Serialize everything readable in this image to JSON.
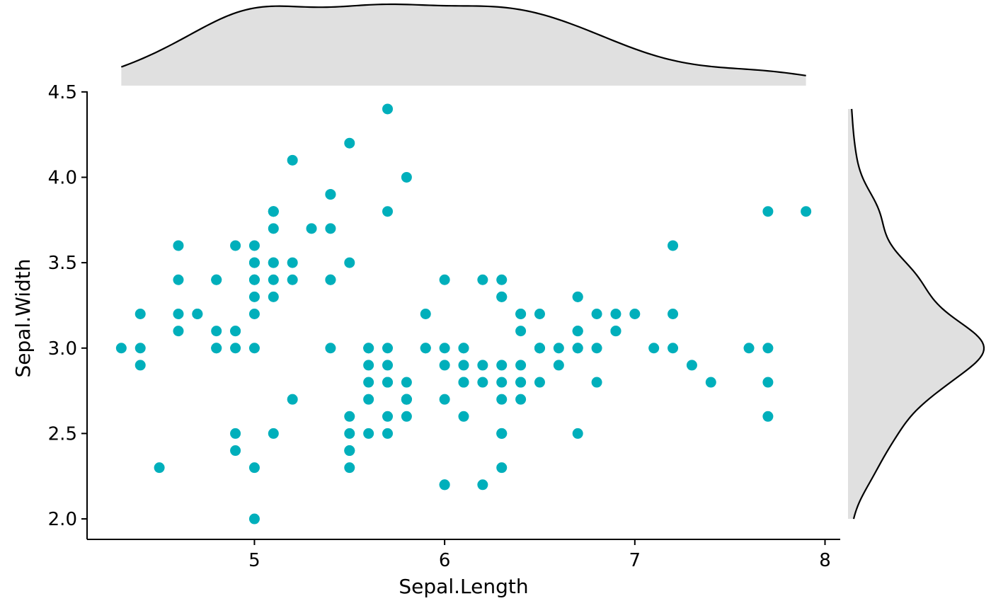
{
  "chart_data": {
    "type": "scatter",
    "title": "",
    "xlabel": "Sepal.Length",
    "ylabel": "Sepal.Width",
    "xlim": [
      4.12,
      8.08
    ],
    "ylim": [
      1.88,
      4.52
    ],
    "xticks": [
      5,
      6,
      7,
      8
    ],
    "yticks": [
      2.0,
      2.5,
      3.0,
      3.5,
      4.0,
      4.5
    ],
    "xtick_labels": [
      "5",
      "6",
      "7",
      "8"
    ],
    "ytick_labels": [
      "2.0",
      "2.5",
      "3.0",
      "3.5",
      "4.0",
      "4.5"
    ],
    "grid": false,
    "legend": "none",
    "point_color": "#00AFBB",
    "density_fill": "#E0E0E0",
    "marginal": "density",
    "points": [
      [
        5.1,
        3.5
      ],
      [
        4.9,
        3.0
      ],
      [
        4.7,
        3.2
      ],
      [
        4.6,
        3.1
      ],
      [
        5.0,
        3.6
      ],
      [
        5.4,
        3.9
      ],
      [
        4.6,
        3.4
      ],
      [
        5.0,
        3.4
      ],
      [
        4.4,
        2.9
      ],
      [
        4.9,
        3.1
      ],
      [
        5.4,
        3.7
      ],
      [
        4.8,
        3.4
      ],
      [
        4.8,
        3.0
      ],
      [
        4.3,
        3.0
      ],
      [
        5.8,
        4.0
      ],
      [
        5.7,
        4.4
      ],
      [
        5.4,
        3.9
      ],
      [
        5.1,
        3.5
      ],
      [
        5.7,
        3.8
      ],
      [
        5.1,
        3.8
      ],
      [
        5.4,
        3.4
      ],
      [
        5.1,
        3.7
      ],
      [
        4.6,
        3.6
      ],
      [
        5.1,
        3.3
      ],
      [
        4.8,
        3.4
      ],
      [
        5.0,
        3.0
      ],
      [
        5.0,
        3.4
      ],
      [
        5.2,
        3.5
      ],
      [
        5.2,
        3.4
      ],
      [
        4.7,
        3.2
      ],
      [
        4.8,
        3.1
      ],
      [
        5.4,
        3.4
      ],
      [
        5.2,
        4.1
      ],
      [
        5.5,
        4.2
      ],
      [
        4.9,
        3.1
      ],
      [
        5.0,
        3.2
      ],
      [
        5.5,
        3.5
      ],
      [
        4.9,
        3.6
      ],
      [
        4.4,
        3.0
      ],
      [
        5.1,
        3.4
      ],
      [
        5.0,
        3.5
      ],
      [
        4.5,
        2.3
      ],
      [
        4.4,
        3.2
      ],
      [
        5.0,
        3.5
      ],
      [
        5.1,
        3.8
      ],
      [
        4.8,
        3.0
      ],
      [
        5.1,
        3.8
      ],
      [
        4.6,
        3.2
      ],
      [
        5.3,
        3.7
      ],
      [
        5.0,
        3.3
      ],
      [
        7.0,
        3.2
      ],
      [
        6.4,
        3.2
      ],
      [
        6.9,
        3.1
      ],
      [
        5.5,
        2.3
      ],
      [
        6.5,
        2.8
      ],
      [
        5.7,
        2.8
      ],
      [
        6.3,
        3.3
      ],
      [
        4.9,
        2.4
      ],
      [
        6.6,
        2.9
      ],
      [
        5.2,
        2.7
      ],
      [
        5.0,
        2.0
      ],
      [
        5.9,
        3.0
      ],
      [
        6.0,
        2.2
      ],
      [
        6.1,
        2.9
      ],
      [
        5.6,
        2.9
      ],
      [
        6.7,
        3.1
      ],
      [
        5.6,
        3.0
      ],
      [
        5.8,
        2.7
      ],
      [
        6.2,
        2.2
      ],
      [
        5.6,
        2.5
      ],
      [
        5.9,
        3.2
      ],
      [
        6.1,
        2.8
      ],
      [
        6.3,
        2.5
      ],
      [
        6.1,
        2.8
      ],
      [
        6.4,
        2.9
      ],
      [
        6.6,
        3.0
      ],
      [
        6.8,
        2.8
      ],
      [
        6.7,
        3.0
      ],
      [
        6.0,
        2.9
      ],
      [
        5.7,
        2.6
      ],
      [
        5.5,
        2.4
      ],
      [
        5.5,
        2.4
      ],
      [
        5.8,
        2.7
      ],
      [
        6.0,
        2.7
      ],
      [
        5.4,
        3.0
      ],
      [
        6.0,
        3.4
      ],
      [
        6.7,
        3.1
      ],
      [
        6.3,
        2.3
      ],
      [
        5.6,
        3.0
      ],
      [
        5.5,
        2.5
      ],
      [
        5.5,
        2.6
      ],
      [
        6.1,
        3.0
      ],
      [
        5.8,
        2.6
      ],
      [
        5.0,
        2.3
      ],
      [
        5.6,
        2.7
      ],
      [
        5.7,
        3.0
      ],
      [
        5.7,
        2.9
      ],
      [
        6.2,
        2.9
      ],
      [
        5.1,
        2.5
      ],
      [
        5.7,
        2.8
      ],
      [
        6.3,
        3.3
      ],
      [
        5.8,
        2.7
      ],
      [
        7.1,
        3.0
      ],
      [
        6.3,
        2.9
      ],
      [
        6.5,
        3.0
      ],
      [
        7.6,
        3.0
      ],
      [
        4.9,
        2.5
      ],
      [
        7.3,
        2.9
      ],
      [
        6.7,
        2.5
      ],
      [
        7.2,
        3.6
      ],
      [
        6.5,
        3.2
      ],
      [
        6.4,
        2.7
      ],
      [
        6.8,
        3.0
      ],
      [
        5.7,
        2.5
      ],
      [
        5.8,
        2.8
      ],
      [
        6.4,
        3.2
      ],
      [
        6.5,
        3.0
      ],
      [
        7.7,
        3.8
      ],
      [
        7.7,
        2.6
      ],
      [
        6.0,
        2.2
      ],
      [
        6.9,
        3.2
      ],
      [
        5.6,
        2.8
      ],
      [
        7.7,
        2.8
      ],
      [
        6.3,
        2.7
      ],
      [
        6.7,
        3.3
      ],
      [
        7.2,
        3.2
      ],
      [
        6.2,
        2.8
      ],
      [
        6.1,
        3.0
      ],
      [
        6.4,
        2.8
      ],
      [
        7.2,
        3.0
      ],
      [
        7.4,
        2.8
      ],
      [
        7.9,
        3.8
      ],
      [
        6.4,
        2.8
      ],
      [
        6.3,
        2.8
      ],
      [
        6.1,
        2.6
      ],
      [
        7.7,
        3.0
      ],
      [
        6.3,
        3.4
      ],
      [
        6.4,
        3.1
      ],
      [
        6.0,
        3.0
      ],
      [
        6.9,
        3.1
      ],
      [
        6.7,
        3.1
      ],
      [
        6.9,
        3.1
      ],
      [
        5.8,
        2.7
      ],
      [
        6.8,
        3.2
      ],
      [
        6.7,
        3.3
      ],
      [
        6.7,
        3.0
      ],
      [
        6.3,
        2.5
      ],
      [
        6.5,
        3.0
      ],
      [
        6.2,
        3.4
      ],
      [
        5.9,
        3.0
      ]
    ]
  }
}
